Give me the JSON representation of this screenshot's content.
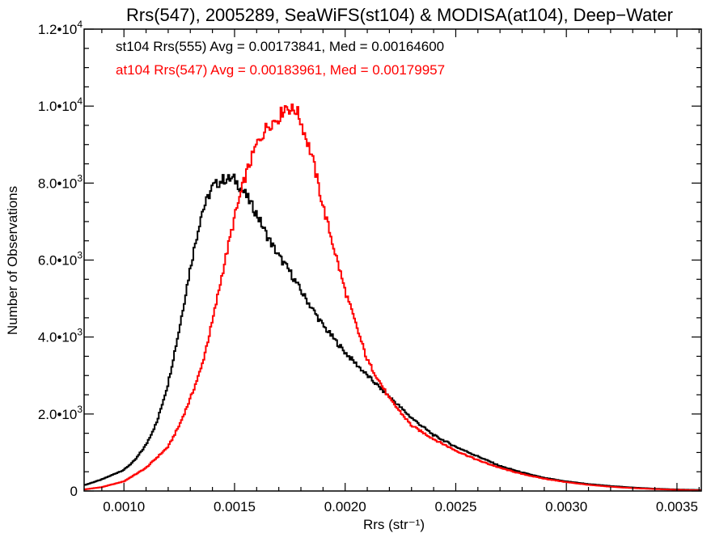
{
  "chart_data": {
    "type": "line",
    "title": "Rrs(547), 2005289, SeaWiFS(st104) & MODISA(at104), Deep−Water",
    "xlabel": "Rrs (str⁻¹)",
    "ylabel": "Number of Observations",
    "xlim": [
      0.00082,
      0.00361
    ],
    "ylim": [
      0,
      12000
    ],
    "xticks": [
      0.001,
      0.0015,
      0.002,
      0.0025,
      0.003,
      0.0035
    ],
    "xtick_labels": [
      "0.0010",
      "0.0015",
      "0.0020",
      "0.0025",
      "0.0030",
      "0.0035"
    ],
    "yticks": [
      0,
      2000,
      4000,
      6000,
      8000,
      10000,
      12000
    ],
    "ytick_labels": [
      {
        "mantissa": "0",
        "exp": ""
      },
      {
        "mantissa": "2.0•10",
        "exp": "3"
      },
      {
        "mantissa": "4.0•10",
        "exp": "3"
      },
      {
        "mantissa": "6.0•10",
        "exp": "3"
      },
      {
        "mantissa": "8.0•10",
        "exp": "3"
      },
      {
        "mantissa": "1.0•10",
        "exp": "4"
      },
      {
        "mantissa": "1.2•10",
        "exp": "4"
      }
    ],
    "grid": false,
    "annotations": [
      {
        "text": "st104 Rrs(555) Avg = 0.00173841, Med = 0.00164600",
        "color": "#000000"
      },
      {
        "text": "at104 Rrs(547) Avg = 0.00183961, Med = 0.00179957",
        "color": "#ff0000"
      }
    ],
    "series": [
      {
        "color": "#000000",
        "x": [
          0.00082,
          0.0009,
          0.001,
          0.00105,
          0.0011,
          0.00115,
          0.0012,
          0.00125,
          0.0013,
          0.00135,
          0.0014,
          0.00145,
          0.0015,
          0.00155,
          0.0016,
          0.00165,
          0.0017,
          0.00175,
          0.0018,
          0.0019,
          0.002,
          0.0021,
          0.0022,
          0.0023,
          0.0024,
          0.0025,
          0.0026,
          0.0027,
          0.0028,
          0.0029,
          0.003,
          0.0031,
          0.0032,
          0.0033,
          0.0034,
          0.0035,
          0.00361
        ],
        "y": [
          150,
          300,
          550,
          800,
          1200,
          1800,
          2800,
          4200,
          5800,
          7200,
          7900,
          8100,
          8100,
          7700,
          7200,
          6600,
          6100,
          5700,
          5200,
          4300,
          3600,
          3000,
          2450,
          1900,
          1450,
          1150,
          900,
          650,
          480,
          340,
          250,
          180,
          130,
          90,
          60,
          40,
          25
        ]
      },
      {
        "color": "#ff0000",
        "x": [
          0.00082,
          0.0009,
          0.001,
          0.0011,
          0.0012,
          0.00125,
          0.0013,
          0.00135,
          0.0014,
          0.00145,
          0.0015,
          0.00155,
          0.0016,
          0.00165,
          0.0017,
          0.00173,
          0.00176,
          0.00178,
          0.0018,
          0.00185,
          0.0019,
          0.00195,
          0.002,
          0.00205,
          0.0021,
          0.0022,
          0.0023,
          0.0024,
          0.0025,
          0.0026,
          0.0027,
          0.0028,
          0.0029,
          0.003,
          0.0031,
          0.0032,
          0.0033,
          0.0034,
          0.0035,
          0.00361
        ],
        "y": [
          40,
          100,
          250,
          600,
          1150,
          1700,
          2400,
          3200,
          4400,
          5800,
          7100,
          8200,
          9000,
          9500,
          9700,
          10000,
          9900,
          9900,
          9600,
          8700,
          7400,
          6300,
          5200,
          4300,
          3400,
          2400,
          1700,
          1350,
          1050,
          800,
          600,
          440,
          320,
          230,
          160,
          110,
          75,
          50,
          30,
          15
        ]
      }
    ]
  }
}
